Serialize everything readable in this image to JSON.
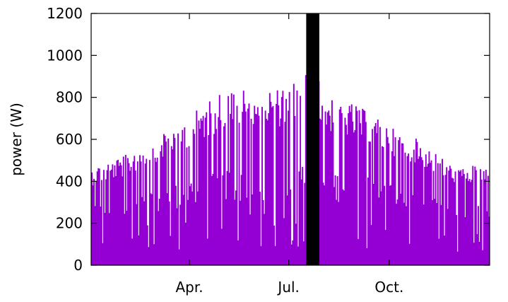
{
  "chart_data": {
    "type": "bar",
    "title": "",
    "xlabel": "",
    "ylabel": "power (W)",
    "ylim": [
      0,
      1200
    ],
    "yticks": [
      0,
      200,
      400,
      600,
      800,
      1000,
      1200
    ],
    "xlim": [
      1,
      365
    ],
    "xticks": [
      {
        "label": "Apr.",
        "day": 91
      },
      {
        "label": "Jul.",
        "day": 182
      },
      {
        "label": "Oct.",
        "day": 274
      }
    ],
    "grid": false,
    "legend": "none",
    "colors": {
      "bars": "#9400d3",
      "highlight": "#000000"
    },
    "highlight_band": {
      "start_day": 198,
      "end_day": 209,
      "value": 1200
    },
    "envelope": [
      {
        "day": 1,
        "value": 470
      },
      {
        "day": 30,
        "value": 520
      },
      {
        "day": 60,
        "value": 620
      },
      {
        "day": 91,
        "value": 720
      },
      {
        "day": 110,
        "value": 790
      },
      {
        "day": 125,
        "value": 860
      },
      {
        "day": 150,
        "value": 850
      },
      {
        "day": 182,
        "value": 840
      },
      {
        "day": 197,
        "value": 1010
      },
      {
        "day": 215,
        "value": 820
      },
      {
        "day": 245,
        "value": 760
      },
      {
        "day": 274,
        "value": 660
      },
      {
        "day": 300,
        "value": 600
      },
      {
        "day": 330,
        "value": 480
      },
      {
        "day": 365,
        "value": 470
      }
    ],
    "base": [
      {
        "day": 1,
        "value": 210
      },
      {
        "day": 91,
        "value": 280
      },
      {
        "day": 182,
        "value": 320
      },
      {
        "day": 274,
        "value": 280
      },
      {
        "day": 365,
        "value": 210
      }
    ]
  }
}
